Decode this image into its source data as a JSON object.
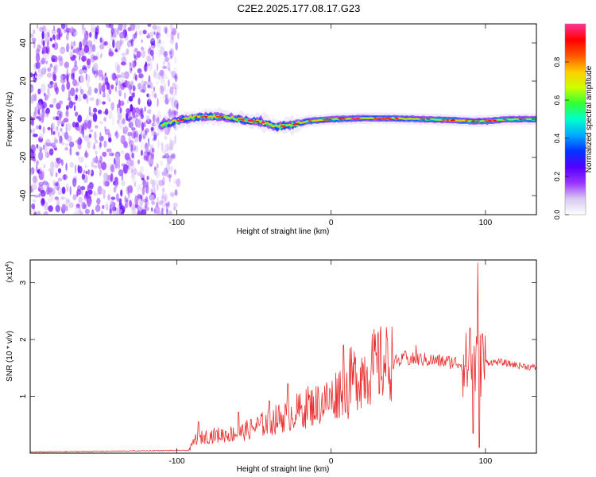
{
  "title": "C2E2.2025.177.08.17.G23",
  "chart_data": [
    {
      "type": "heatmap",
      "xlabel": "Height of straight line (km)",
      "ylabel": "Frequency (Hz)",
      "xlim": [
        -195,
        133
      ],
      "ylim": [
        -50,
        50
      ],
      "x_ticks": [
        -100,
        0,
        100
      ],
      "y_ticks": [
        -40,
        -20,
        0,
        20,
        40
      ],
      "colorbar": {
        "label": "Normalized spectral amplitude",
        "range": [
          0,
          1
        ],
        "ticks": [
          "0.0",
          "0.2",
          "0.4",
          "0.6",
          "0.8"
        ],
        "colormap": [
          "#ffffff",
          "#d8c8f0",
          "#9933ff",
          "#5500ff",
          "#0033ff",
          "#00aaff",
          "#00ffcc",
          "#33ff33",
          "#ccff00",
          "#ffcc00",
          "#ff5500",
          "#ff0000",
          "#ff3399"
        ]
      },
      "features": {
        "noise_region_x": [
          -195,
          -103
        ],
        "ridge": {
          "x": [
            -110,
            -90,
            -75,
            -60,
            -45,
            -35,
            -25,
            -15,
            0,
            20,
            40,
            60,
            80,
            90,
            100,
            115,
            133
          ],
          "y": [
            -3,
            1,
            1.5,
            0,
            -1.5,
            -4,
            -3,
            -1,
            0,
            0.5,
            0.5,
            0,
            -0.5,
            -1,
            -1,
            0,
            0
          ]
        }
      }
    },
    {
      "type": "line",
      "xlabel": "Height of straight line (km)",
      "ylabel": "SNR (10 * v/v)",
      "y_multiplier": "(x10",
      "y_exponent": "4",
      "y_multiplier_close": ")",
      "xlim": [
        -195,
        133
      ],
      "ylim": [
        0,
        3.4
      ],
      "x_ticks": [
        -100,
        0,
        100
      ],
      "y_ticks": [
        1,
        2,
        3
      ],
      "color": "#e83030",
      "envelope": {
        "x": [
          -195,
          -92,
          -88,
          -80,
          -60,
          -40,
          -20,
          0,
          10,
          20,
          30,
          40,
          50,
          60,
          70,
          80,
          88,
          95,
          100,
          110,
          120,
          133
        ],
        "y": [
          0.02,
          0.05,
          0.25,
          0.3,
          0.35,
          0.55,
          0.75,
          0.95,
          1.25,
          1.4,
          1.55,
          1.6,
          1.65,
          1.65,
          1.62,
          1.6,
          1.55,
          1.55,
          1.6,
          1.6,
          1.55,
          1.5
        ]
      },
      "spikes": [
        {
          "x": -86,
          "y": 0.55
        },
        {
          "x": -60,
          "y": 0.72
        },
        {
          "x": -40,
          "y": 0.92
        },
        {
          "x": -28,
          "y": 1.22
        },
        {
          "x": -15,
          "y": 1.18
        },
        {
          "x": 8,
          "y": 1.9
        },
        {
          "x": 11,
          "y": 0.6
        },
        {
          "x": 48,
          "y": 1.8
        },
        {
          "x": 55,
          "y": 1.9
        },
        {
          "x": 90,
          "y": 2.2
        },
        {
          "x": 92,
          "y": 0.35
        },
        {
          "x": 95,
          "y": 3.35
        },
        {
          "x": 96,
          "y": 0.1
        },
        {
          "x": 98,
          "y": 2.1
        }
      ]
    }
  ]
}
